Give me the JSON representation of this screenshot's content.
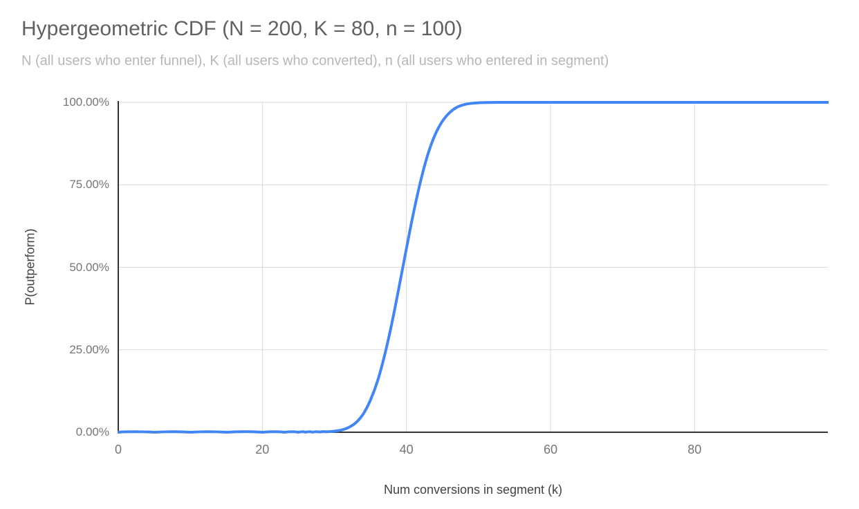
{
  "chart_data": {
    "type": "line",
    "title": "Hypergeometric CDF (N = 200, K = 80, n = 100)",
    "subtitle": "N (all users who enter funnel), K (all users who converted), n (all users who entered in segment)",
    "xlabel": "Num conversions in segment (k)",
    "ylabel": "P(outperform)",
    "xlim": [
      0,
      98.5
    ],
    "ylim": [
      0,
      1
    ],
    "grid": true,
    "legend": "none",
    "x_ticks": [
      {
        "value": 0,
        "label": "0"
      },
      {
        "value": 20,
        "label": "20"
      },
      {
        "value": 40,
        "label": "40"
      },
      {
        "value": 60,
        "label": "60"
      },
      {
        "value": 80,
        "label": "80"
      }
    ],
    "y_ticks": [
      {
        "value": 0,
        "label": "0.00%"
      },
      {
        "value": 0.25,
        "label": "25.00%"
      },
      {
        "value": 0.5,
        "label": "50.00%"
      },
      {
        "value": 0.75,
        "label": "75.00%"
      },
      {
        "value": 1,
        "label": "100.00%"
      }
    ],
    "series": [
      {
        "name": "P(outperform)",
        "color": "#4285f4",
        "points": [
          [
            0,
            0
          ],
          [
            5,
            0
          ],
          [
            10,
            0
          ],
          [
            15,
            0
          ],
          [
            20,
            0
          ],
          [
            23,
            0
          ],
          [
            25,
            0.0
          ],
          [
            26,
            0.0001
          ],
          [
            27,
            0.0002
          ],
          [
            28,
            0.0006
          ],
          [
            29,
            0.0014
          ],
          [
            30,
            0.0031
          ],
          [
            31,
            0.0069
          ],
          [
            32,
            0.0147
          ],
          [
            33,
            0.0294
          ],
          [
            34,
            0.0552
          ],
          [
            35,
            0.0974
          ],
          [
            36,
            0.156
          ],
          [
            37,
            0.236
          ],
          [
            38,
            0.333
          ],
          [
            39,
            0.443
          ],
          [
            40,
            0.557
          ],
          [
            41,
            0.667
          ],
          [
            42,
            0.764
          ],
          [
            43,
            0.844
          ],
          [
            44,
            0.903
          ],
          [
            45,
            0.943
          ],
          [
            46,
            0.969
          ],
          [
            47,
            0.985
          ],
          [
            48,
            0.993
          ],
          [
            49,
            0.997
          ],
          [
            50,
            0.9987
          ],
          [
            51,
            0.9995
          ],
          [
            52,
            0.9998
          ],
          [
            53,
            0.9999
          ],
          [
            54,
            1
          ],
          [
            55,
            1
          ],
          [
            60,
            1
          ],
          [
            70,
            1
          ],
          [
            80,
            1
          ],
          [
            90,
            1
          ],
          [
            98.5,
            1
          ]
        ]
      }
    ]
  },
  "colors": {
    "series_line": "#4285f4",
    "gridline": "#d9d9d9",
    "axis_line": "#333333",
    "tick_label": "#757575",
    "title": "#616161",
    "subtitle": "#b7b7b7",
    "axis_title": "#424242",
    "background": "#ffffff"
  }
}
